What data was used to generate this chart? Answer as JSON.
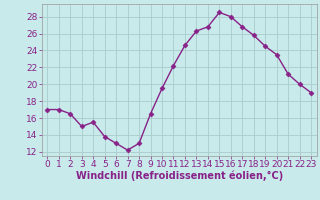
{
  "x": [
    0,
    1,
    2,
    3,
    4,
    5,
    6,
    7,
    8,
    9,
    10,
    11,
    12,
    13,
    14,
    15,
    16,
    17,
    18,
    19,
    20,
    21,
    22,
    23
  ],
  "y": [
    17.0,
    17.0,
    16.5,
    15.0,
    15.5,
    13.8,
    13.0,
    12.2,
    13.0,
    16.5,
    19.5,
    22.2,
    24.6,
    26.3,
    26.8,
    28.5,
    28.0,
    26.8,
    25.8,
    24.5,
    23.5,
    21.2,
    20.0,
    19.0
  ],
  "line_color": "#882288",
  "marker": "D",
  "markersize": 2.5,
  "linewidth": 1.0,
  "background_color": "#c8eaea",
  "grid_color": "#aacccc",
  "xlabel": "Windchill (Refroidissement éolien,°C)",
  "ylabel": "",
  "xlim": [
    -0.5,
    23.5
  ],
  "ylim": [
    11.5,
    29.5
  ],
  "yticks": [
    12,
    14,
    16,
    18,
    20,
    22,
    24,
    26,
    28
  ],
  "xticks": [
    0,
    1,
    2,
    3,
    4,
    5,
    6,
    7,
    8,
    9,
    10,
    11,
    12,
    13,
    14,
    15,
    16,
    17,
    18,
    19,
    20,
    21,
    22,
    23
  ],
  "tick_color": "#882288",
  "label_color": "#882288",
  "label_fontsize": 7,
  "tick_fontsize": 6.5
}
